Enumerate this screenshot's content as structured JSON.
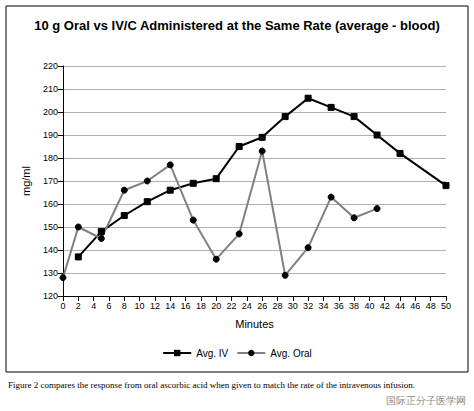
{
  "chart_data": {
    "type": "line",
    "title": "10 g Oral vs IV/C Administered at the Same Rate (average - blood)",
    "x_label": "Minutes",
    "y_label": "mg/ml",
    "x": [
      0,
      2,
      5,
      8,
      11,
      14,
      17,
      20,
      23,
      26,
      29,
      32,
      35,
      38,
      41,
      44,
      50
    ],
    "series": [
      {
        "name": "Avg. IV",
        "color": "#000000",
        "marker": "square",
        "line_style": "solid",
        "values": [
          null,
          137,
          148,
          155,
          161,
          166,
          169,
          171,
          185,
          189,
          198,
          206,
          202,
          198,
          190,
          182,
          168
        ]
      },
      {
        "name": "Avg. Oral",
        "color": "#808080",
        "marker": "circle",
        "line_style": "solid",
        "values": [
          128,
          150,
          145,
          166,
          170,
          177,
          153,
          136,
          147,
          183,
          129,
          141,
          163,
          154,
          158,
          null,
          null
        ]
      }
    ],
    "xlim": [
      0,
      50
    ],
    "xticks": [
      0,
      2,
      4,
      6,
      8,
      10,
      12,
      14,
      16,
      18,
      20,
      22,
      24,
      26,
      28,
      30,
      32,
      34,
      36,
      38,
      40,
      42,
      44,
      46,
      48,
      50
    ],
    "ylim": [
      120,
      220
    ],
    "yticks": [
      120,
      130,
      140,
      150,
      160,
      170,
      180,
      190,
      200,
      210,
      220
    ],
    "grid": true,
    "legend": "bottom",
    "annotations": [
      "Figure 2 compares the response from oral ascorbic acid when given to match the rate of the intravenous infusion.",
      "国际正分子医学网"
    ]
  }
}
